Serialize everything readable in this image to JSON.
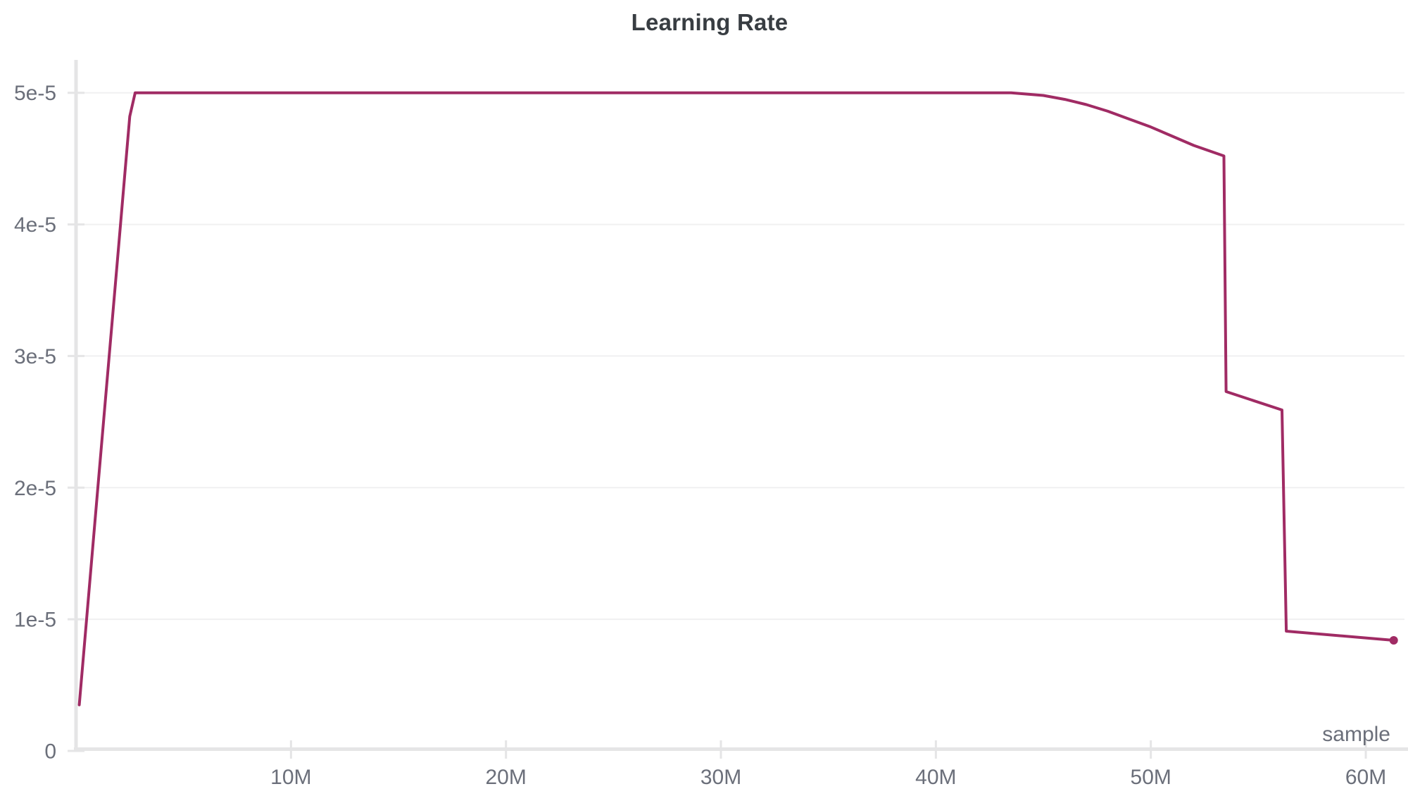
{
  "chart_data": {
    "type": "line",
    "title": "Learning Rate",
    "xlabel": "sample",
    "ylabel": "",
    "xlim_M": [
      0,
      61.8
    ],
    "ylim": [
      0,
      5.25e-05
    ],
    "x_ticks": [
      {
        "value_M": 10,
        "label": "10M"
      },
      {
        "value_M": 20,
        "label": "20M"
      },
      {
        "value_M": 30,
        "label": "30M"
      },
      {
        "value_M": 40,
        "label": "40M"
      },
      {
        "value_M": 50,
        "label": "50M"
      },
      {
        "value_M": 60,
        "label": "60M"
      }
    ],
    "y_ticks": [
      {
        "value": 0,
        "label": "0"
      },
      {
        "value": 1e-05,
        "label": "1e-5"
      },
      {
        "value": 2e-05,
        "label": "2e-5"
      },
      {
        "value": 3e-05,
        "label": "3e-5"
      },
      {
        "value": 4e-05,
        "label": "4e-5"
      },
      {
        "value": 5e-05,
        "label": "5e-5"
      }
    ],
    "grid": "horizontal-only",
    "legend": "none",
    "line_color": "#A02B64",
    "end_marker": "dot",
    "series": [
      {
        "name": "Learning Rate",
        "points": [
          [
            0.15,
            3.5e-06
          ],
          [
            1.0,
            1.97e-05
          ],
          [
            2.0,
            3.87e-05
          ],
          [
            2.5,
            4.82e-05
          ],
          [
            2.75,
            5e-05
          ],
          [
            10,
            5e-05
          ],
          [
            20,
            5e-05
          ],
          [
            30,
            5e-05
          ],
          [
            40,
            5e-05
          ],
          [
            43.5,
            5e-05
          ],
          [
            45,
            4.98e-05
          ],
          [
            46,
            4.95e-05
          ],
          [
            47,
            4.91e-05
          ],
          [
            48,
            4.86e-05
          ],
          [
            49,
            4.8e-05
          ],
          [
            50,
            4.74e-05
          ],
          [
            51,
            4.67e-05
          ],
          [
            52,
            4.6e-05
          ],
          [
            53.4,
            4.52e-05
          ],
          [
            53.5,
            2.73e-05
          ],
          [
            56.1,
            2.59e-05
          ],
          [
            56.3,
            9.1e-06
          ],
          [
            61.3,
            8.4e-06
          ]
        ]
      }
    ]
  }
}
